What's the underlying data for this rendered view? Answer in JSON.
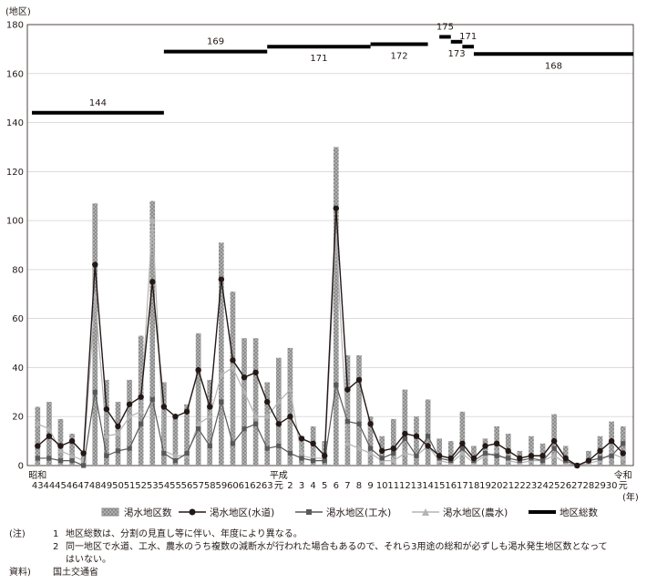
{
  "chart_data": {
    "type": "bar",
    "ylabel": "(地区)",
    "xunit": "(年)",
    "ylim": [
      0,
      180
    ],
    "yticks": [
      0,
      20,
      40,
      60,
      80,
      100,
      120,
      140,
      160,
      180
    ],
    "categories": [
      "43",
      "44",
      "45",
      "46",
      "47",
      "48",
      "49",
      "50",
      "51",
      "52",
      "53",
      "54",
      "55",
      "56",
      "57",
      "58",
      "59",
      "60",
      "61",
      "62",
      "63",
      "元",
      "2",
      "3",
      "4",
      "5",
      "6",
      "7",
      "8",
      "9",
      "10",
      "11",
      "12",
      "13",
      "14",
      "15",
      "16",
      "17",
      "18",
      "19",
      "20",
      "21",
      "22",
      "23",
      "24",
      "25",
      "26",
      "27",
      "28",
      "29",
      "30",
      "元"
    ],
    "era_labels": [
      {
        "text": "昭和",
        "at": "43"
      },
      {
        "text": "平成",
        "at": "元"
      },
      {
        "text": "令和",
        "at": "元"
      }
    ],
    "series": [
      {
        "name": "渇水地区数",
        "kind": "bar",
        "color": "#8c8c8c",
        "values": [
          24,
          26,
          19,
          13,
          6,
          107,
          35,
          26,
          35,
          53,
          108,
          34,
          21,
          25,
          54,
          35,
          91,
          71,
          52,
          52,
          34,
          44,
          48,
          12,
          16,
          10,
          130,
          45,
          45,
          20,
          12,
          19,
          31,
          20,
          27,
          11,
          10,
          22,
          8,
          11,
          16,
          13,
          6,
          12,
          9,
          21,
          8,
          1,
          6,
          12,
          18,
          16
        ]
      },
      {
        "name": "渇水地区(水道)",
        "kind": "line",
        "color": "#231815",
        "marker": "circle",
        "values": [
          8,
          12,
          8,
          10,
          5,
          82,
          23,
          16,
          25,
          28,
          75,
          24,
          20,
          22,
          39,
          24,
          76,
          43,
          36,
          38,
          26,
          17,
          20,
          11,
          9,
          4,
          105,
          31,
          35,
          17,
          6,
          7,
          13,
          12,
          8,
          4,
          3,
          9,
          3,
          8,
          9,
          6,
          3,
          4,
          4,
          10,
          3,
          0,
          2,
          6,
          10,
          5
        ]
      },
      {
        "name": "渇水地区(工水)",
        "kind": "line",
        "color": "#595959",
        "marker": "square",
        "values": [
          3,
          3,
          2,
          2,
          0,
          30,
          4,
          6,
          7,
          17,
          27,
          5,
          2,
          5,
          15,
          8,
          26,
          9,
          15,
          17,
          7,
          8,
          5,
          3,
          2,
          2,
          33,
          18,
          17,
          7,
          3,
          5,
          11,
          4,
          12,
          3,
          2,
          7,
          2,
          5,
          4,
          3,
          2,
          3,
          2,
          7,
          2,
          0,
          2,
          3,
          4,
          9
        ]
      },
      {
        "name": "渇水地区(農水)",
        "kind": "line",
        "color": "#b3b3b3",
        "marker": "triangle",
        "values": [
          17,
          15,
          6,
          4,
          2,
          69,
          12,
          13,
          20,
          22,
          100,
          6,
          4,
          4,
          17,
          20,
          37,
          40,
          30,
          20,
          20,
          26,
          31,
          4,
          3,
          3,
          94,
          9,
          7,
          5,
          2,
          2,
          5,
          4,
          8,
          2,
          1,
          5,
          1,
          4,
          5,
          2,
          1,
          2,
          2,
          4,
          1,
          0,
          1,
          2,
          5,
          3
        ]
      },
      {
        "name": "地区総数",
        "kind": "step",
        "color": "#000000",
        "segments": [
          {
            "from": "43",
            "to": "54",
            "value": 144
          },
          {
            "from": "54",
            "to": "63",
            "value": 169
          },
          {
            "from": "63",
            "to": "9",
            "value": 171
          },
          {
            "from": "9",
            "to": "14",
            "value": 172
          },
          {
            "from": "15",
            "to": "16",
            "value": 175
          },
          {
            "from": "16",
            "to": "17",
            "value": 173
          },
          {
            "from": "17",
            "to": "18",
            "value": 171
          },
          {
            "from": "18",
            "to": "30",
            "value": 168
          }
        ]
      }
    ],
    "total_labels": [
      "144",
      "169",
      "171",
      "172",
      "175",
      "173",
      "171",
      "168"
    ]
  },
  "legend": {
    "items": [
      "渇水地区数",
      "渇水地区(水道)",
      "渇水地区(工水)",
      "渇水地区(農水)",
      "地区総数"
    ]
  },
  "notes": {
    "label": "(注)",
    "items": [
      {
        "num": "1",
        "text": "地区総数は、分割の見直し等に伴い、年度により異なる。"
      },
      {
        "num": "2",
        "text": "同一地区で水道、工水、農水のうち複数の減断水が行われた場合もあるので、それら3用途の総和が必ずしも渇水発生地区数となって"
      },
      {
        "num": "",
        "text": "はいない。"
      }
    ],
    "source_label": "資料)",
    "source": "国土交通省"
  }
}
